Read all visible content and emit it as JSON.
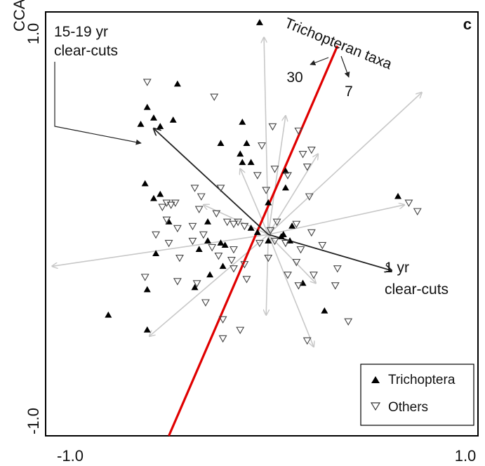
{
  "chart_data": {
    "type": "scatter",
    "panel_letter": "c",
    "ylabel": "CCA",
    "xlim": [
      -1.0,
      1.0
    ],
    "ylim": [
      -1.0,
      1.0
    ],
    "x_ticks": [
      "-1.0",
      "1.0"
    ],
    "y_ticks": [
      "-1.0",
      "1.0"
    ],
    "grid": false,
    "legend_position": "bottom-right",
    "legend": {
      "trichoptera": "Trichoptera",
      "others": "Others"
    },
    "annotations": {
      "clear_15_19_line1": "15-19 yr",
      "clear_15_19_line2": "clear-cuts",
      "clear_1_line1": "1 yr",
      "clear_1_line2": "clear-cuts",
      "taxa_label": "Trichopteran taxa",
      "taxa_count_a": "30",
      "taxa_count_b": "7"
    },
    "colors": {
      "trichoptera": "#000000",
      "others": "#444444",
      "vector_dark": "#222222",
      "vector_light": "#c8c8c8",
      "highlight_line": "#e00000"
    },
    "origin": [
      0.03,
      -0.05
    ],
    "environmental_vectors_dark": [
      {
        "x": -0.5,
        "y": 0.45
      },
      {
        "x": 0.6,
        "y": -0.22
      }
    ],
    "environmental_vectors_light": [
      {
        "x": 0.01,
        "y": 0.88
      },
      {
        "x": 0.11,
        "y": 0.51
      },
      {
        "x": 0.74,
        "y": 0.62
      },
      {
        "x": 0.66,
        "y": 0.09
      },
      {
        "x": 0.26,
        "y": 0.33
      },
      {
        "x": -0.1,
        "y": 0.26
      },
      {
        "x": -0.27,
        "y": 0.09
      },
      {
        "x": -0.97,
        "y": -0.2
      },
      {
        "x": -0.52,
        "y": -0.53
      },
      {
        "x": 0.24,
        "y": -0.58
      },
      {
        "x": 0.02,
        "y": -0.43
      },
      {
        "x": 0.25,
        "y": -0.28
      }
    ],
    "highlight_line": {
      "x1": -0.43,
      "y1": -1.0,
      "x2": 0.35,
      "y2": 0.84
    },
    "series": [
      {
        "name": "Trichoptera",
        "marker": "filled-triangle-up",
        "points": [
          {
            "x": -0.01,
            "y": 0.95
          },
          {
            "x": -0.39,
            "y": 0.66
          },
          {
            "x": -0.53,
            "y": 0.55
          },
          {
            "x": -0.5,
            "y": 0.5
          },
          {
            "x": -0.56,
            "y": 0.47
          },
          {
            "x": -0.47,
            "y": 0.46
          },
          {
            "x": -0.41,
            "y": 0.49
          },
          {
            "x": -0.19,
            "y": 0.38
          },
          {
            "x": -0.09,
            "y": 0.48
          },
          {
            "x": -0.07,
            "y": 0.38
          },
          {
            "x": -0.09,
            "y": 0.29
          },
          {
            "x": -0.05,
            "y": 0.29
          },
          {
            "x": 0.11,
            "y": 0.25
          },
          {
            "x": 0.11,
            "y": 0.17
          },
          {
            "x": -0.54,
            "y": 0.19
          },
          {
            "x": -0.47,
            "y": 0.14
          },
          {
            "x": -0.5,
            "y": 0.12
          },
          {
            "x": -0.43,
            "y": 0.01
          },
          {
            "x": -0.25,
            "y": 0.01
          },
          {
            "x": -0.05,
            "y": -0.02
          },
          {
            "x": -0.02,
            "y": -0.04
          },
          {
            "x": 0.03,
            "y": -0.08
          },
          {
            "x": -0.25,
            "y": -0.08
          },
          {
            "x": -0.19,
            "y": -0.09
          },
          {
            "x": -0.17,
            "y": -0.1
          },
          {
            "x": -0.29,
            "y": -0.12
          },
          {
            "x": -0.49,
            "y": -0.14
          },
          {
            "x": -0.24,
            "y": -0.24
          },
          {
            "x": -0.18,
            "y": -0.2
          },
          {
            "x": -0.31,
            "y": -0.3
          },
          {
            "x": -0.53,
            "y": -0.31
          },
          {
            "x": 0.13,
            "y": -0.08
          },
          {
            "x": 0.14,
            "y": -0.01
          },
          {
            "x": 0.09,
            "y": -0.06
          },
          {
            "x": 0.29,
            "y": -0.41
          },
          {
            "x": 0.19,
            "y": -0.28
          },
          {
            "x": 0.63,
            "y": 0.13
          },
          {
            "x": -0.71,
            "y": -0.43
          },
          {
            "x": -0.53,
            "y": -0.5
          },
          {
            "x": 0.03,
            "y": 0.1
          },
          {
            "x": -0.1,
            "y": 0.33
          },
          {
            "x": 0.1,
            "y": -0.05
          }
        ]
      },
      {
        "name": "Others",
        "marker": "open-triangle-down",
        "points": [
          {
            "x": -0.53,
            "y": 0.67
          },
          {
            "x": -0.22,
            "y": 0.6
          },
          {
            "x": 0.05,
            "y": 0.46
          },
          {
            "x": 0.17,
            "y": 0.44
          },
          {
            "x": 0.23,
            "y": 0.35
          },
          {
            "x": 0.19,
            "y": 0.33
          },
          {
            "x": 0.0,
            "y": 0.37
          },
          {
            "x": 0.06,
            "y": 0.26
          },
          {
            "x": 0.12,
            "y": 0.23
          },
          {
            "x": 0.21,
            "y": 0.27
          },
          {
            "x": -0.02,
            "y": 0.23
          },
          {
            "x": 0.02,
            "y": 0.16
          },
          {
            "x": 0.22,
            "y": 0.13
          },
          {
            "x": 0.68,
            "y": 0.1
          },
          {
            "x": -0.31,
            "y": 0.17
          },
          {
            "x": -0.28,
            "y": 0.13
          },
          {
            "x": -0.19,
            "y": 0.17
          },
          {
            "x": -0.44,
            "y": 0.1
          },
          {
            "x": -0.42,
            "y": 0.09
          },
          {
            "x": -0.4,
            "y": 0.1
          },
          {
            "x": -0.29,
            "y": 0.07
          },
          {
            "x": -0.21,
            "y": 0.05
          },
          {
            "x": -0.16,
            "y": 0.01
          },
          {
            "x": -0.13,
            "y": 0.0
          },
          {
            "x": -0.11,
            "y": 0.01
          },
          {
            "x": -0.08,
            "y": -0.01
          },
          {
            "x": -0.46,
            "y": 0.08
          },
          {
            "x": -0.44,
            "y": 0.02
          },
          {
            "x": -0.39,
            "y": -0.02
          },
          {
            "x": -0.32,
            "y": -0.01
          },
          {
            "x": -0.27,
            "y": -0.05
          },
          {
            "x": -0.49,
            "y": -0.05
          },
          {
            "x": -0.43,
            "y": -0.09
          },
          {
            "x": -0.32,
            "y": -0.08
          },
          {
            "x": -0.23,
            "y": -0.11
          },
          {
            "x": -0.13,
            "y": -0.12
          },
          {
            "x": -0.01,
            "y": -0.09
          },
          {
            "x": 0.04,
            "y": -0.03
          },
          {
            "x": 0.07,
            "y": 0.01
          },
          {
            "x": 0.16,
            "y": 0.0
          },
          {
            "x": 0.06,
            "y": -0.08
          },
          {
            "x": 0.11,
            "y": -0.09
          },
          {
            "x": 0.23,
            "y": -0.04
          },
          {
            "x": 0.28,
            "y": -0.1
          },
          {
            "x": 0.18,
            "y": -0.12
          },
          {
            "x": 0.16,
            "y": -0.18
          },
          {
            "x": 0.03,
            "y": -0.16
          },
          {
            "x": -0.08,
            "y": -0.19
          },
          {
            "x": -0.14,
            "y": -0.17
          },
          {
            "x": -0.2,
            "y": -0.15
          },
          {
            "x": -0.38,
            "y": -0.16
          },
          {
            "x": -0.54,
            "y": -0.25
          },
          {
            "x": -0.39,
            "y": -0.27
          },
          {
            "x": -0.3,
            "y": -0.28
          },
          {
            "x": -0.13,
            "y": -0.21
          },
          {
            "x": -0.07,
            "y": -0.26
          },
          {
            "x": 0.12,
            "y": -0.24
          },
          {
            "x": 0.17,
            "y": -0.29
          },
          {
            "x": 0.24,
            "y": -0.24
          },
          {
            "x": 0.35,
            "y": -0.21
          },
          {
            "x": 0.34,
            "y": -0.29
          },
          {
            "x": 0.4,
            "y": -0.46
          },
          {
            "x": 0.21,
            "y": -0.55
          },
          {
            "x": -0.26,
            "y": -0.37
          },
          {
            "x": -0.18,
            "y": -0.45
          },
          {
            "x": -0.1,
            "y": -0.5
          },
          {
            "x": -0.18,
            "y": -0.54
          },
          {
            "x": 0.72,
            "y": 0.06
          }
        ]
      }
    ]
  }
}
